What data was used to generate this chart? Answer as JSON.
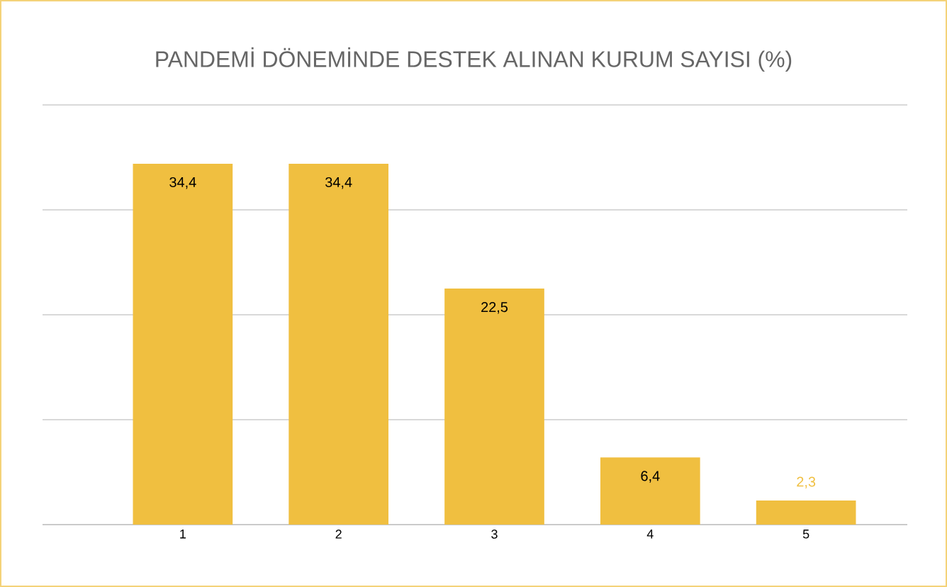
{
  "chart_data": {
    "type": "bar",
    "title": "PANDEMİ DÖNEMİNDE DESTEK ALINAN KURUM SAYISI (%)",
    "categories": [
      "1",
      "2",
      "3",
      "4",
      "5"
    ],
    "values": [
      34.4,
      34.4,
      22.5,
      6.4,
      2.3
    ],
    "value_labels": [
      "34,4",
      "34,4",
      "22,5",
      "6,4",
      "2,3"
    ],
    "color": "#f0bf40",
    "ylim": [
      0,
      40
    ],
    "yticks": [
      {
        "value": 0,
        "label": null
      },
      {
        "value": 10,
        "label": null
      },
      {
        "value": 20,
        "label": null
      },
      {
        "value": 30,
        "label": null
      },
      {
        "value": 40,
        "label": null
      }
    ],
    "grid": "y",
    "tick_labels": "x",
    "data_labels": true
  }
}
